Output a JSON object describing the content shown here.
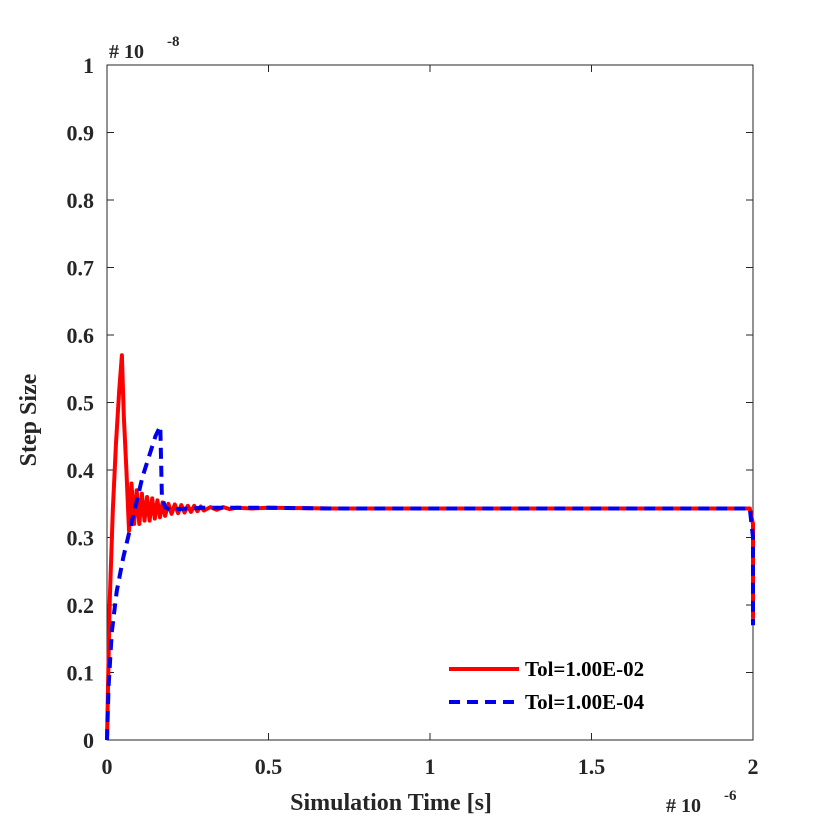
{
  "chart_data": {
    "type": "line",
    "title": "",
    "xlabel": "Simulation Time [s]",
    "ylabel": "Step Size",
    "x_exponent_prefix": "# 10",
    "x_exponent_power": "-6",
    "y_exponent_prefix": "# 10",
    "y_exponent_power": "-8",
    "xlim": [
      0,
      2
    ],
    "ylim": [
      0,
      1
    ],
    "x_ticks": [
      0,
      0.5,
      1,
      1.5,
      2
    ],
    "x_tick_labels": [
      "0",
      "0.5",
      "1",
      "1.5",
      "2"
    ],
    "y_ticks": [
      0,
      0.1,
      0.2,
      0.3,
      0.4,
      0.5,
      0.6,
      0.7,
      0.8,
      0.9,
      1
    ],
    "y_tick_labels": [
      "0",
      "0.1",
      "0.2",
      "0.3",
      "0.4",
      "0.5",
      "0.6",
      "0.7",
      "0.8",
      "0.9",
      "1"
    ],
    "grid": false,
    "legend_position": "bottom-right",
    "series": [
      {
        "name": "Tol=1.00E-02",
        "color": "#ff0000",
        "dash": "solid",
        "x": [
          0,
          0.008,
          0.018,
          0.028,
          0.038,
          0.046,
          0.052,
          0.06,
          0.068,
          0.076,
          0.084,
          0.092,
          0.1,
          0.108,
          0.116,
          0.124,
          0.132,
          0.14,
          0.148,
          0.156,
          0.164,
          0.172,
          0.18,
          0.19,
          0.2,
          0.21,
          0.22,
          0.23,
          0.24,
          0.25,
          0.26,
          0.27,
          0.28,
          0.29,
          0.3,
          0.32,
          0.34,
          0.36,
          0.38,
          0.4,
          0.45,
          0.5,
          0.7,
          1.0,
          1.5,
          1.99,
          2.0,
          2.0
        ],
        "y": [
          0,
          0.2,
          0.34,
          0.44,
          0.52,
          0.57,
          0.48,
          0.4,
          0.31,
          0.38,
          0.32,
          0.37,
          0.32,
          0.365,
          0.325,
          0.36,
          0.325,
          0.358,
          0.328,
          0.355,
          0.33,
          0.352,
          0.332,
          0.35,
          0.335,
          0.349,
          0.336,
          0.348,
          0.337,
          0.347,
          0.338,
          0.347,
          0.339,
          0.346,
          0.34,
          0.345,
          0.341,
          0.345,
          0.342,
          0.344,
          0.343,
          0.344,
          0.343,
          0.343,
          0.343,
          0.343,
          0.32,
          0.18
        ]
      },
      {
        "name": "Tol=1.00E-04",
        "color": "#0000ee",
        "dash": "dashed",
        "x": [
          0,
          0.005,
          0.015,
          0.03,
          0.05,
          0.07,
          0.09,
          0.11,
          0.13,
          0.15,
          0.165,
          0.17,
          0.18,
          0.2,
          0.22,
          0.25,
          0.3,
          0.35,
          0.4,
          0.5,
          0.7,
          1.0,
          1.5,
          1.99,
          2.0,
          2.0
        ],
        "y": [
          0,
          0.08,
          0.16,
          0.22,
          0.27,
          0.31,
          0.35,
          0.39,
          0.42,
          0.45,
          0.465,
          0.36,
          0.345,
          0.34,
          0.342,
          0.343,
          0.344,
          0.344,
          0.344,
          0.344,
          0.343,
          0.343,
          0.343,
          0.343,
          0.3,
          0.17
        ]
      }
    ]
  }
}
